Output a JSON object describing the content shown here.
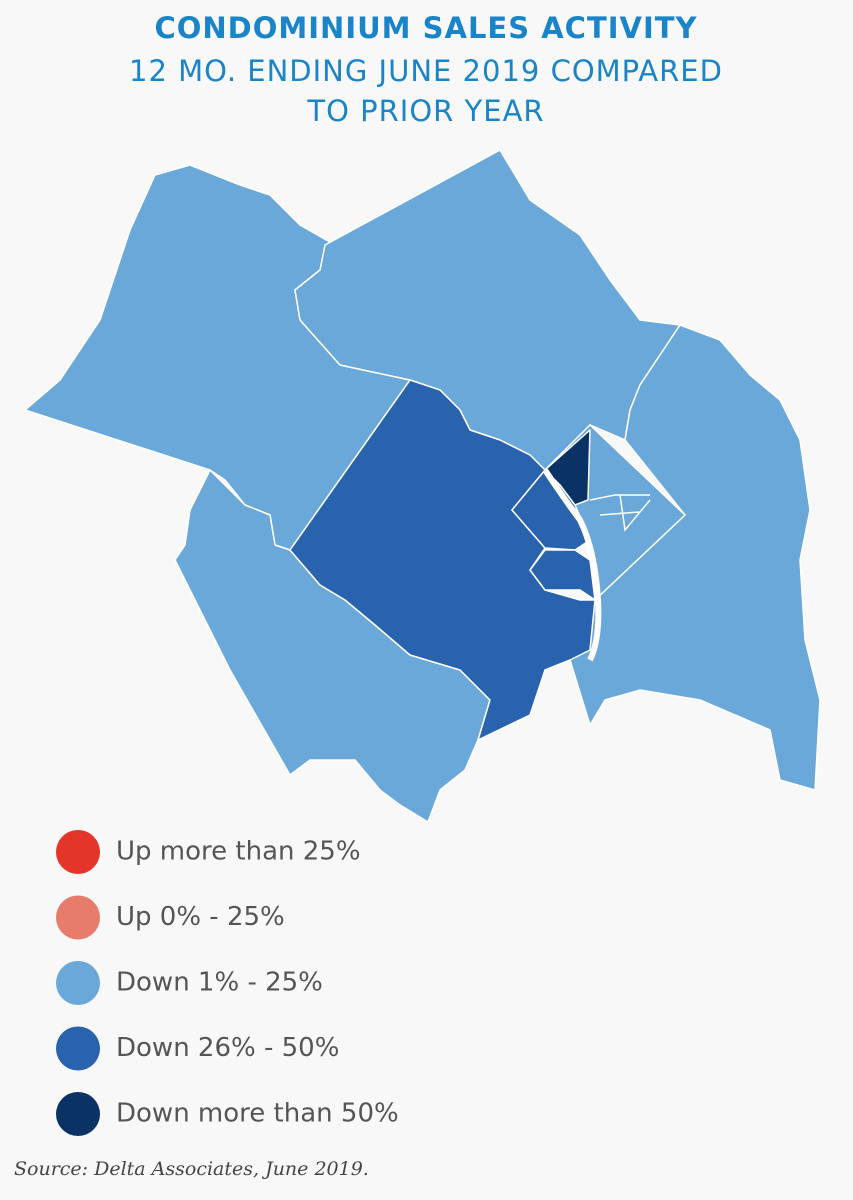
{
  "title": "CONDOMINIUM SALES ACTIVITY",
  "subtitle": [
    "12 MO. ENDING JUNE 2019 COMPARED",
    "TO PRIOR YEAR"
  ],
  "legend": [
    {
      "label": "Up more than 25%",
      "color": "#e4352a"
    },
    {
      "label": "Up 0% - 25%",
      "color": "#e77b6c"
    },
    {
      "label": "Down 1% - 25%",
      "color": "#6aa8da"
    },
    {
      "label": "Down 26% - 50%",
      "color": "#2962ad"
    },
    {
      "label": "Down more than 50%",
      "color": "#0b3265"
    }
  ],
  "source": "Source: Delta Associates, June 2019."
}
